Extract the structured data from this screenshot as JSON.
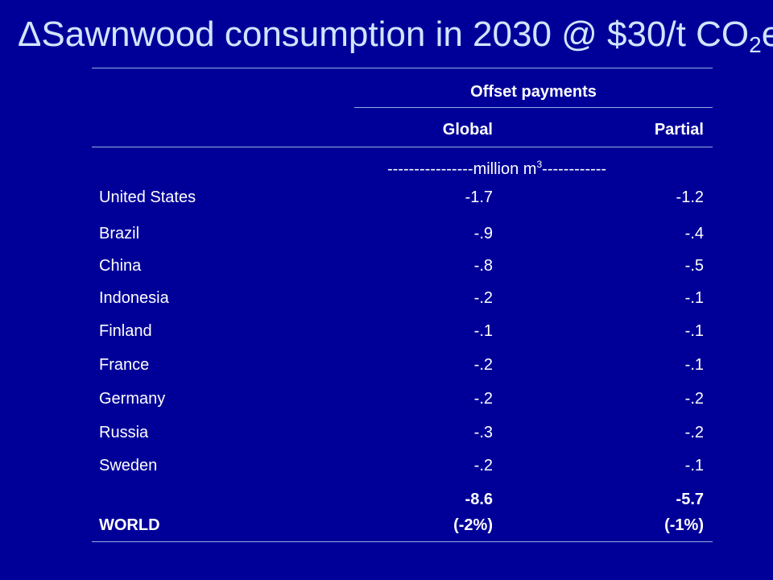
{
  "slide": {
    "title_main": "ΔSawnwood consumption in 2030 @ $30/t CO",
    "title_sub": "2",
    "title_tail": "e"
  },
  "table": {
    "group_header": "Offset payments",
    "col_global": "Global",
    "col_partial": "Partial",
    "units_pre": "----------------million m",
    "units_sup": "3",
    "units_post": "------------",
    "rows": [
      {
        "country": "United States",
        "global": "-1.7",
        "partial": "-1.2"
      },
      {
        "country": "Brazil",
        "global": "-.9",
        "partial": "-.4"
      },
      {
        "country": "China",
        "global": "-.8",
        "partial": "-.5"
      },
      {
        "country": "Indonesia",
        "global": "-.2",
        "partial": "-.1"
      },
      {
        "country": "Finland",
        "global": "-.1",
        "partial": "-.1"
      },
      {
        "country": "France",
        "global": "-.2",
        "partial": "-.1"
      },
      {
        "country": "Germany",
        "global": "-.2",
        "partial": "-.2"
      },
      {
        "country": "Russia",
        "global": "-.3",
        "partial": "-.2"
      },
      {
        "country": "Sweden",
        "global": "-.2",
        "partial": "-.1"
      }
    ],
    "world": {
      "label": "WORLD",
      "global_value": "-8.6",
      "global_pct": "(-2%)",
      "partial_value": "-5.7",
      "partial_pct": "(-1%)"
    }
  }
}
